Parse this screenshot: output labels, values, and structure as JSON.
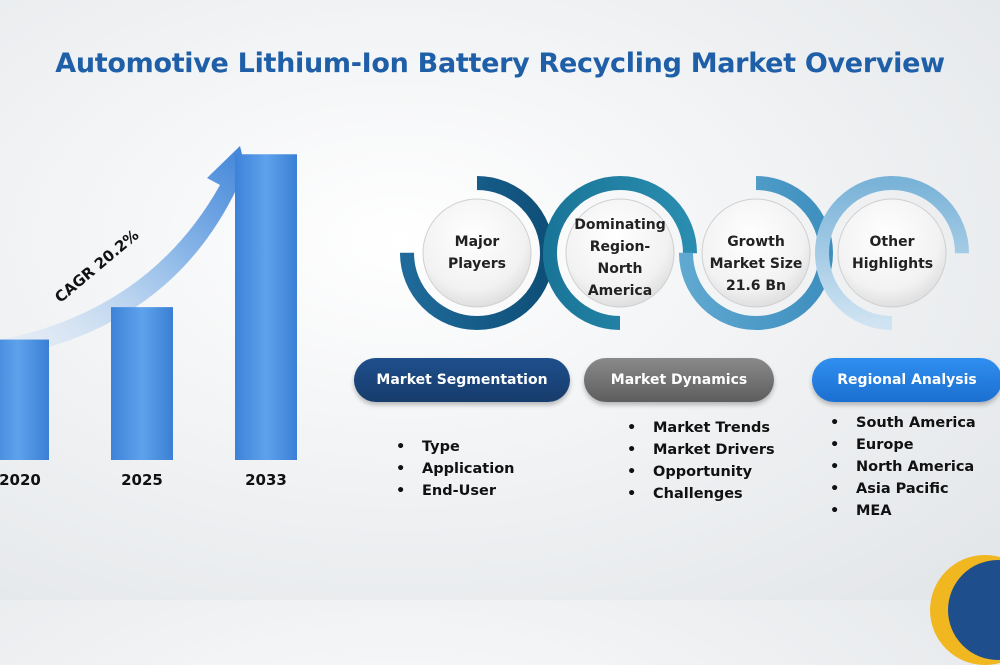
{
  "title": "Automotive Lithium-Ion Battery Recycling Market Overview",
  "chart_data": {
    "type": "bar",
    "categories": [
      "2020",
      "2025",
      "2033"
    ],
    "values": [
      2.6,
      3.3,
      6.6
    ],
    "annotations": [
      "CAGR 20.2%"
    ]
  },
  "circles": [
    {
      "label": "Major Players"
    },
    {
      "label": "Dominating Region- North America"
    },
    {
      "label": "Growth Market Size 21.6 Bn"
    },
    {
      "label": "Other Highlights"
    }
  ],
  "sections": [
    {
      "label": "Market Segmentation",
      "items": [
        "Type",
        "Application",
        "End-User"
      ]
    },
    {
      "label": "Market Dynamics",
      "items": [
        "Market Trends",
        "Market Drivers",
        "Opportunity",
        "Challenges"
      ]
    },
    {
      "label": "Regional Analysis",
      "items": [
        "South America",
        "Europe",
        "North America",
        "Asia Pacific",
        "MEA"
      ]
    }
  ],
  "colors": {
    "title": "#1f5fa8",
    "bar": "#4a90e2",
    "pill_dark_blue": "#1e4f8c",
    "pill_gray": "#6e6e6e",
    "pill_bright_blue": "#1b6fd0",
    "accent_yellow": "#f1b720"
  }
}
